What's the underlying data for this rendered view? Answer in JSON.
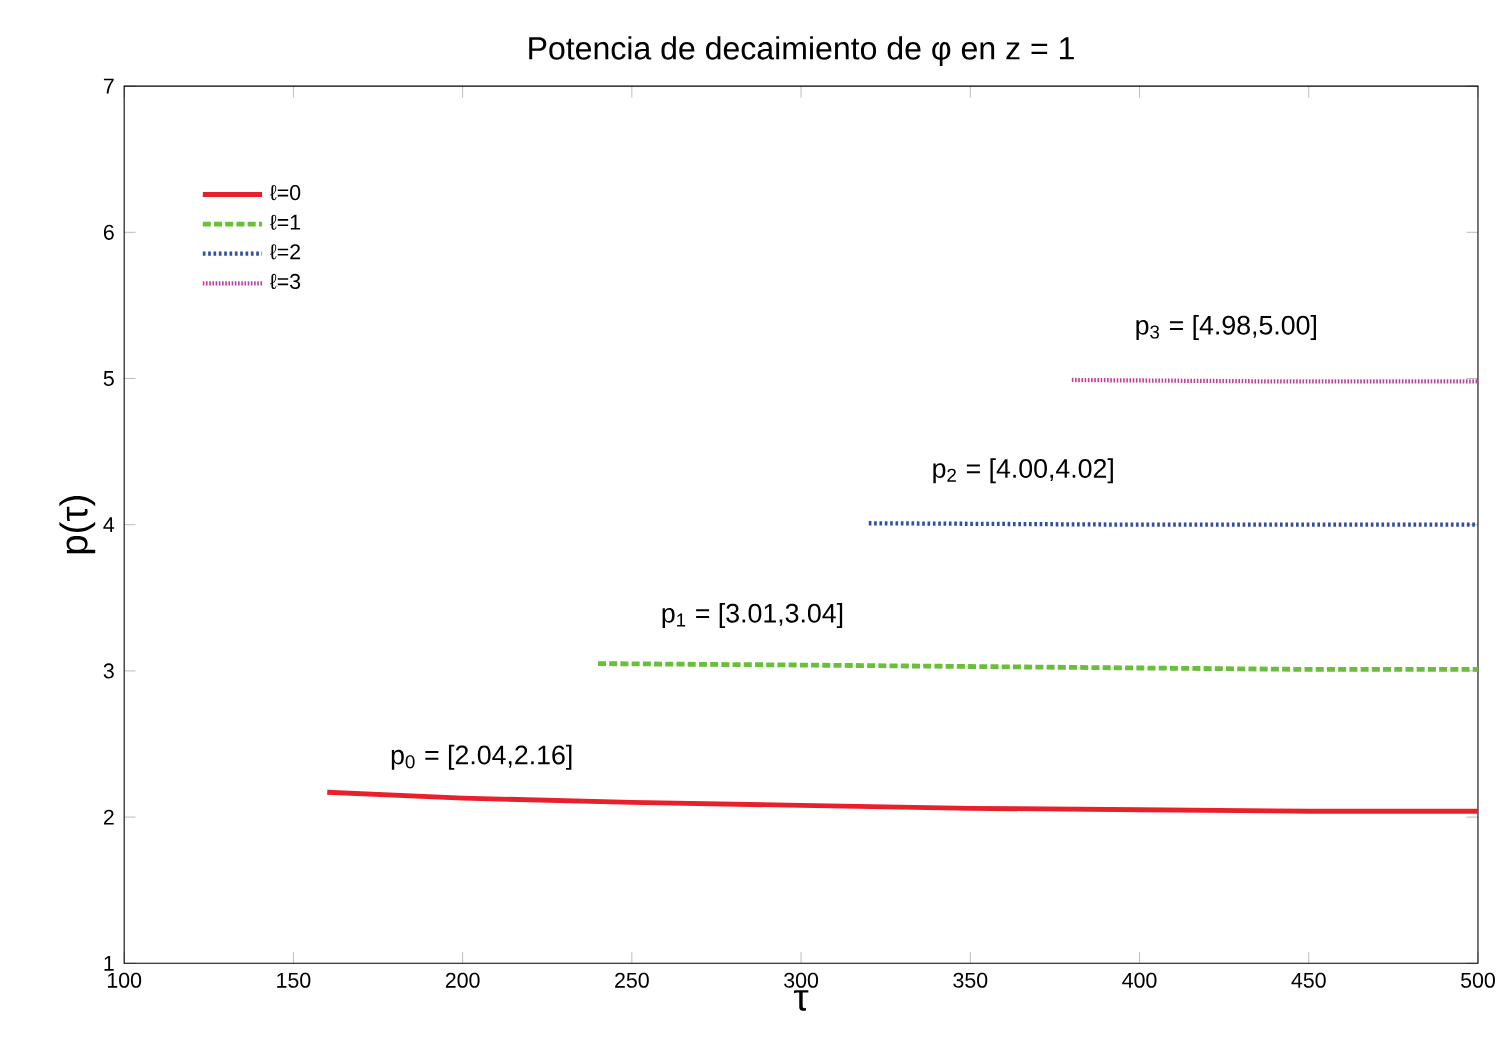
{
  "chart_data": {
    "type": "line",
    "title": "Potencia de decaimiento de φ en z = 1",
    "xlabel": "τ",
    "ylabel": "p(τ)",
    "xlim": [
      100,
      500
    ],
    "xticks": [
      100,
      150,
      200,
      250,
      300,
      350,
      400,
      450,
      500
    ],
    "ylim": [
      1,
      7
    ],
    "yticks": [
      1,
      2,
      3,
      4,
      5,
      6,
      7
    ],
    "legend": "top left",
    "grid": false,
    "marker": "none",
    "series": [
      {
        "name": "ℓ=0",
        "color": "#e8202a",
        "line_style": "solid",
        "x": [
          160,
          200,
          250,
          300,
          350,
          400,
          450,
          500
        ],
        "values": [
          2.17,
          2.13,
          2.1,
          2.08,
          2.06,
          2.05,
          2.04,
          2.04
        ]
      },
      {
        "name": "ℓ=1",
        "color": "#6abf3a",
        "line_style": "dashed",
        "x": [
          240,
          300,
          350,
          400,
          450,
          500
        ],
        "values": [
          3.05,
          3.04,
          3.03,
          3.02,
          3.01,
          3.01
        ]
      },
      {
        "name": "ℓ=2",
        "color": "#2e4fa8",
        "line_style": "dotted",
        "x": [
          320,
          400,
          500
        ],
        "values": [
          4.01,
          4.0,
          4.0
        ]
      },
      {
        "name": "ℓ=3",
        "color": "#c040a0",
        "line_style": "dotted",
        "x": [
          380,
          440,
          500
        ],
        "values": [
          4.99,
          4.98,
          4.98
        ]
      }
    ],
    "annotations": [
      "p$_{0}$ = [2.04,2.16]",
      "p$_{1}$ = [3.01,3.04]",
      "p$_{2}$ = [4.00,4.02]",
      "p$_{3}$ = [4.98,5.00]"
    ]
  }
}
